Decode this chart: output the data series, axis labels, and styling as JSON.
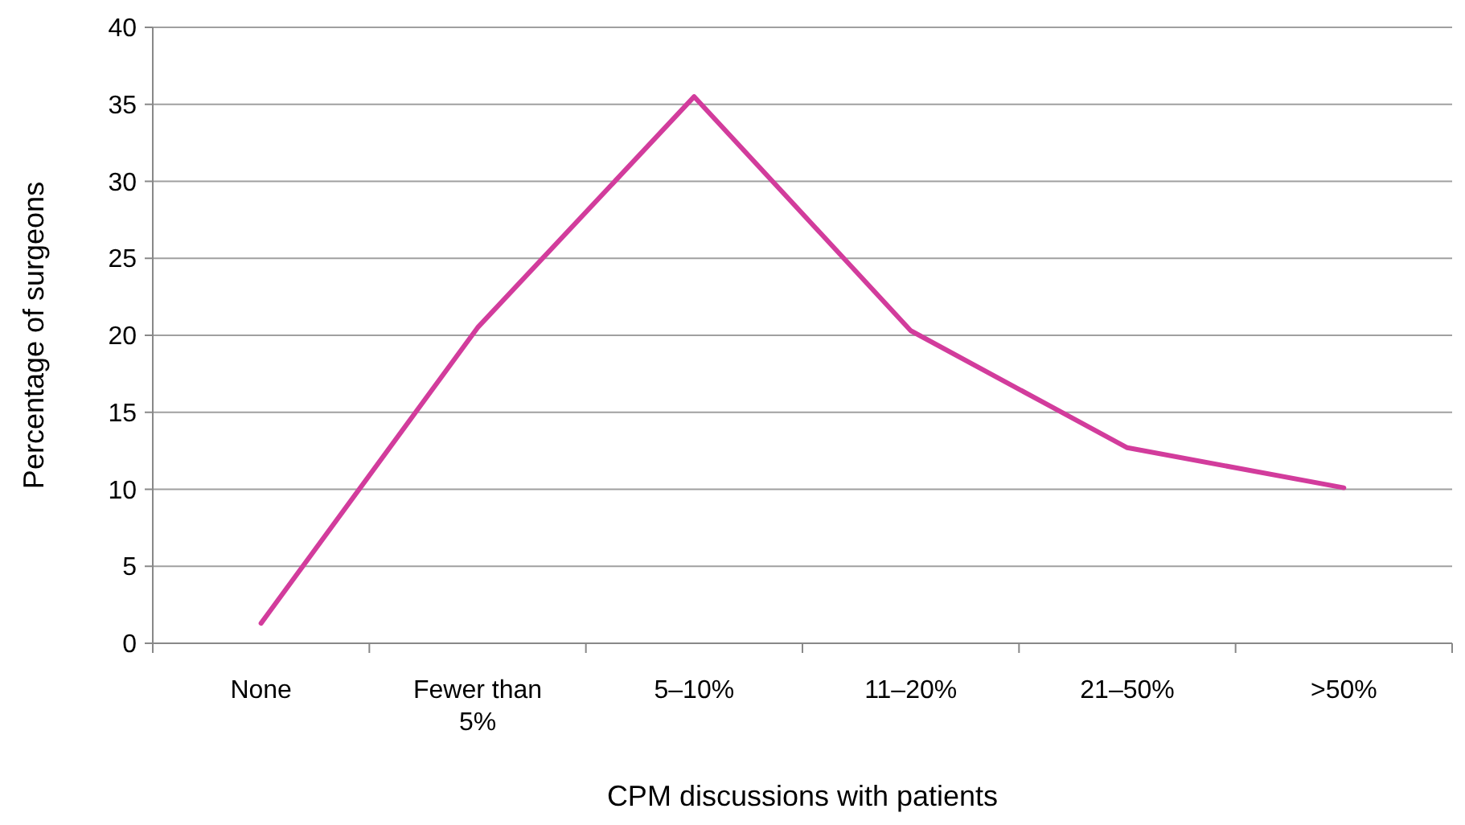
{
  "chart_data": {
    "type": "line",
    "xlabel": "CPM discussions with patients",
    "ylabel": "Percentage of surgeons",
    "categories": [
      "None",
      "Fewer than 5%",
      "5–10%",
      "11–20%",
      "21–50%",
      ">50%"
    ],
    "series": [
      {
        "color": "#d23c9c",
        "values": [
          1.3,
          20.5,
          35.5,
          20.3,
          12.7,
          10.1
        ]
      }
    ],
    "ylim": [
      0,
      40
    ],
    "yticks": [
      0,
      5,
      10,
      15,
      20,
      25,
      30,
      35,
      40
    ],
    "grid": "y",
    "marker": "none",
    "line_style": "solid"
  }
}
